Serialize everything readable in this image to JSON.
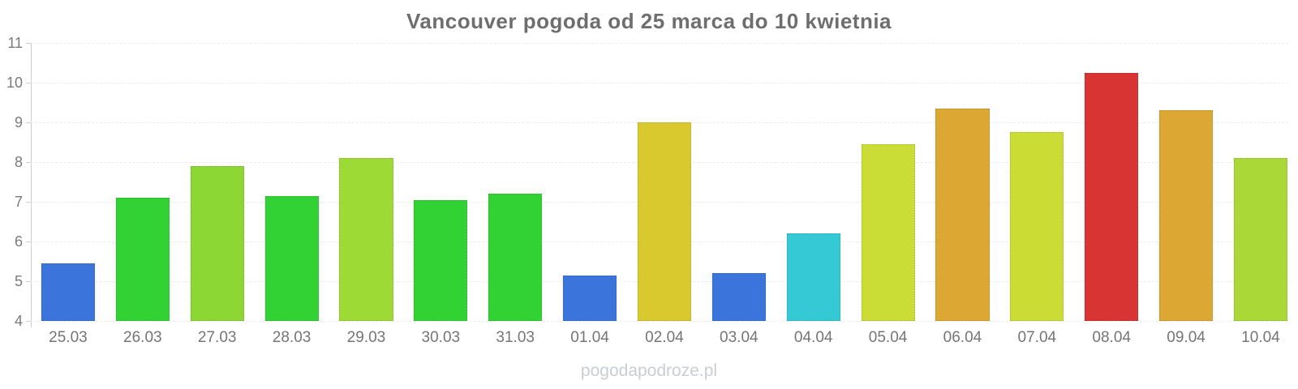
{
  "title": "Vancouver pogoda od 25 marca do 10 kwietnia",
  "watermark": "pogodapodroze.pl",
  "colors": {
    "title_text": "#6e6e6e",
    "axis_label": "#7a7a7a",
    "x_label": "#757575",
    "grid_line": "#ececec",
    "axis_line": "#cfcfcf",
    "watermark_text": "#c9ced3"
  },
  "chart_data": {
    "type": "bar",
    "title": "Vancouver pogoda od 25 marca do 10 kwietnia",
    "xlabel": "",
    "ylabel": "",
    "ylim": [
      4,
      11
    ],
    "y_ticks": [
      11,
      10,
      9,
      8,
      7,
      6,
      5,
      4
    ],
    "grid": true,
    "legend": false,
    "categories": [
      "25.03",
      "26.03",
      "27.03",
      "28.03",
      "29.03",
      "30.03",
      "31.03",
      "01.04",
      "02.04",
      "03.04",
      "04.04",
      "05.04",
      "06.04",
      "07.04",
      "08.04",
      "09.04",
      "10.04"
    ],
    "values": [
      5.45,
      7.1,
      7.9,
      7.15,
      8.1,
      7.05,
      7.2,
      5.15,
      9.0,
      5.2,
      6.2,
      8.45,
      9.35,
      8.75,
      10.25,
      9.3,
      8.1
    ],
    "bar_colors": [
      "#3b74da",
      "#32d235",
      "#8cd733",
      "#32d235",
      "#9eda36",
      "#32d235",
      "#32d235",
      "#3b74da",
      "#d9c92e",
      "#3b74da",
      "#34c9d4",
      "#c9dd36",
      "#dca833",
      "#cbdc35",
      "#d93434",
      "#dca833",
      "#aad837"
    ]
  }
}
